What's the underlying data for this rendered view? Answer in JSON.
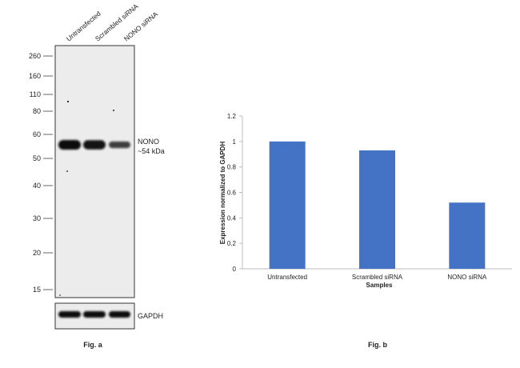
{
  "figure_a": {
    "caption": "Fig. a",
    "lanes": [
      "Untransfected",
      "Scrambled siRNA",
      "NONO siRNA"
    ],
    "ladder_kda": [
      "260",
      "160",
      "110",
      "80",
      "60",
      "50",
      "40",
      "30",
      "20",
      "15"
    ],
    "band_target_name": "NONO",
    "band_target_size": "~54 kDa",
    "loading_control": "GAPDH",
    "band_intensity": [
      1.0,
      0.93,
      0.52
    ]
  },
  "figure_b": {
    "caption": "Fig. b"
  },
  "chart_data": {
    "type": "bar",
    "categories": [
      "Untransfected",
      "Scrambled siRNA",
      "NONO siRNA"
    ],
    "values": [
      1.0,
      0.93,
      0.52
    ],
    "xlabel": "Samples",
    "ylabel": "Expression normalized to GAPDH",
    "ylim": [
      0,
      1.2
    ],
    "yticks": [
      "0",
      "0.2",
      "0.4",
      "0.6",
      "0.8",
      "1",
      "1.2"
    ],
    "bar_color": "#4472C4",
    "grid": false
  }
}
